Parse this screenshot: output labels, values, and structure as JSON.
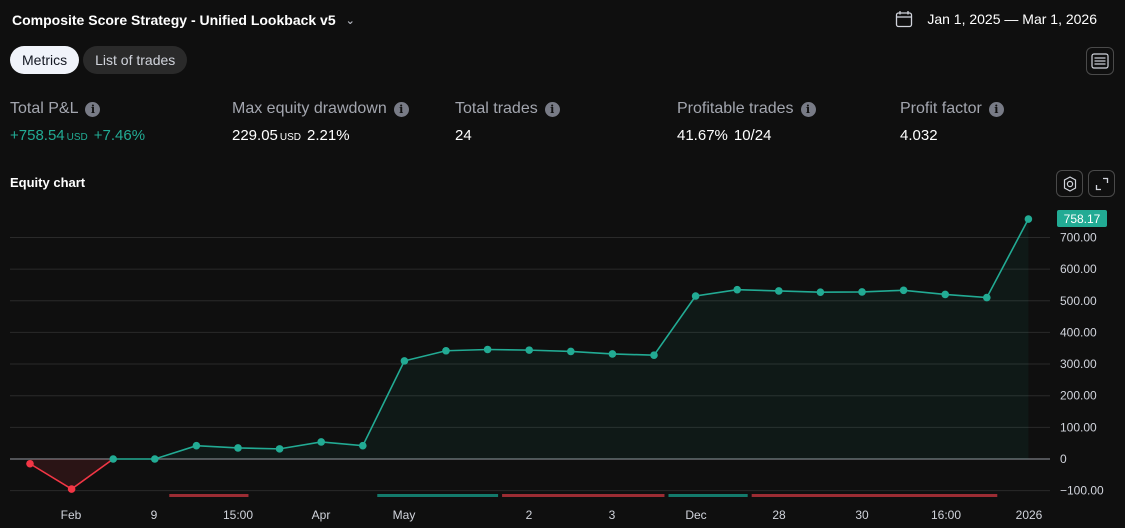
{
  "header": {
    "strategy_name": "Composite Score Strategy - Unified Lookback v5",
    "date_range": "Jan 1, 2025 — Mar 1, 2026"
  },
  "tabs": [
    {
      "label": "Metrics",
      "active": true
    },
    {
      "label": "List of trades",
      "active": false
    }
  ],
  "metrics": {
    "total_pnl": {
      "label": "Total P&L",
      "value": "+758.54",
      "unit": "USD",
      "pct": "+7.46%"
    },
    "max_drawdown": {
      "label": "Max equity drawdown",
      "value": "229.05",
      "unit": "USD",
      "pct": "2.21%"
    },
    "total_trades": {
      "label": "Total trades",
      "value": "24"
    },
    "profitable_trades": {
      "label": "Profitable trades",
      "value": "41.67%",
      "ratio": "10/24"
    },
    "profit_factor": {
      "label": "Profit factor",
      "value": "4.032"
    }
  },
  "equity": {
    "title": "Equity chart"
  },
  "colors": {
    "accent_green": "#22ab94",
    "loss_red": "#f23645",
    "background": "#0f0f0f"
  },
  "chart_data": {
    "type": "line",
    "x": [
      1,
      2,
      3,
      4,
      5,
      6,
      7,
      8,
      9,
      10,
      11,
      12,
      13,
      14,
      15,
      16,
      17,
      18,
      19,
      20,
      21,
      22,
      23,
      24,
      25
    ],
    "values": [
      -15,
      -95,
      0,
      0,
      42,
      35,
      32,
      54,
      42,
      310,
      342,
      346,
      344,
      340,
      332,
      328,
      515,
      535,
      531,
      527,
      528,
      533,
      520,
      510,
      758.17
    ],
    "x_tick_labels": [
      "Feb",
      "9",
      "15:00",
      "Apr",
      "May",
      "2",
      "3",
      "Dec",
      "28",
      "30",
      "16:00",
      "2026"
    ],
    "y_ticks": [
      -100,
      0,
      100,
      200,
      300,
      400,
      500,
      600,
      700
    ],
    "y_tick_labels": [
      "−100.00",
      "0",
      "100.00",
      "200.00",
      "300.00",
      "400.00",
      "500.00",
      "600.00",
      "700.00"
    ],
    "ylim": [
      -110,
      790
    ],
    "last_value_label": "758.17",
    "grid": true,
    "trade_bars": [
      {
        "color": "red",
        "from": 4.0,
        "to": 6.0
      },
      {
        "color": "green",
        "from": 9.0,
        "to": 12.0
      },
      {
        "color": "red",
        "from": 12.0,
        "to": 16.0
      },
      {
        "color": "green",
        "from": 16.0,
        "to": 18.0
      },
      {
        "color": "red",
        "from": 18.0,
        "to": 24.0
      }
    ]
  }
}
